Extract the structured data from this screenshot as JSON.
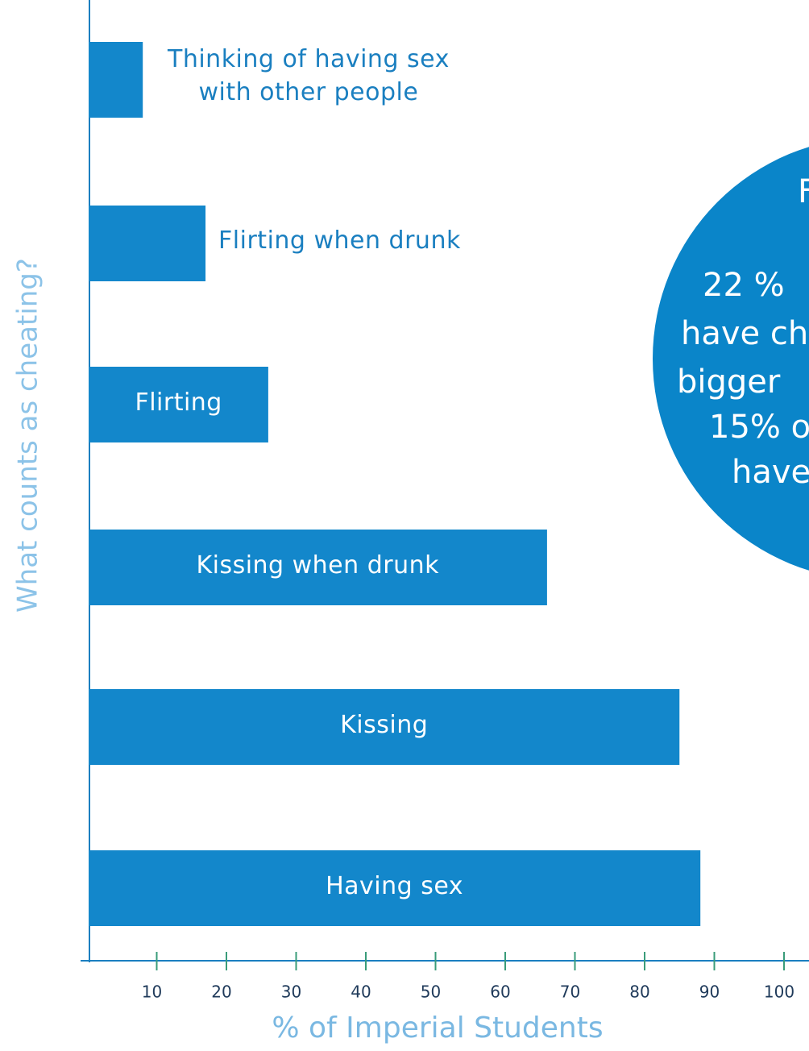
{
  "chart_data": {
    "type": "hbar",
    "categories": [
      "Thinking of having sex\nwith other people",
      "Flirting when drunk",
      "Flirting",
      "Kissing when drunk",
      "Kissing",
      "Having sex"
    ],
    "values": [
      8,
      17,
      26,
      66,
      85,
      88
    ],
    "color": "#1387cb",
    "xlim": [
      0,
      100
    ],
    "xticks": [
      10,
      20,
      30,
      40,
      50,
      60,
      70,
      80,
      90,
      100
    ],
    "xlabel": "% of Imperial Students",
    "ylabel": "What counts as cheating?",
    "annotation": [
      "F",
      "22 %",
      "have ch",
      "bigger",
      "15% o",
      "have"
    ],
    "annotation_color": "#0a85c9"
  }
}
